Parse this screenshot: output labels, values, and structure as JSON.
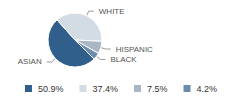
{
  "chart_data": {
    "type": "pie",
    "categories": [
      "ASIAN",
      "WHITE",
      "HISPANIC",
      "BLACK"
    ],
    "values": [
      50.9,
      37.4,
      7.5,
      4.2
    ],
    "value_labels": [
      "50.9%",
      "37.4%",
      "7.5%",
      "4.2%"
    ],
    "colors": [
      "#2f5f8a",
      "#d3dbe4",
      "#a8b6c5",
      "#6e8cab"
    ],
    "legend": "bottom"
  }
}
